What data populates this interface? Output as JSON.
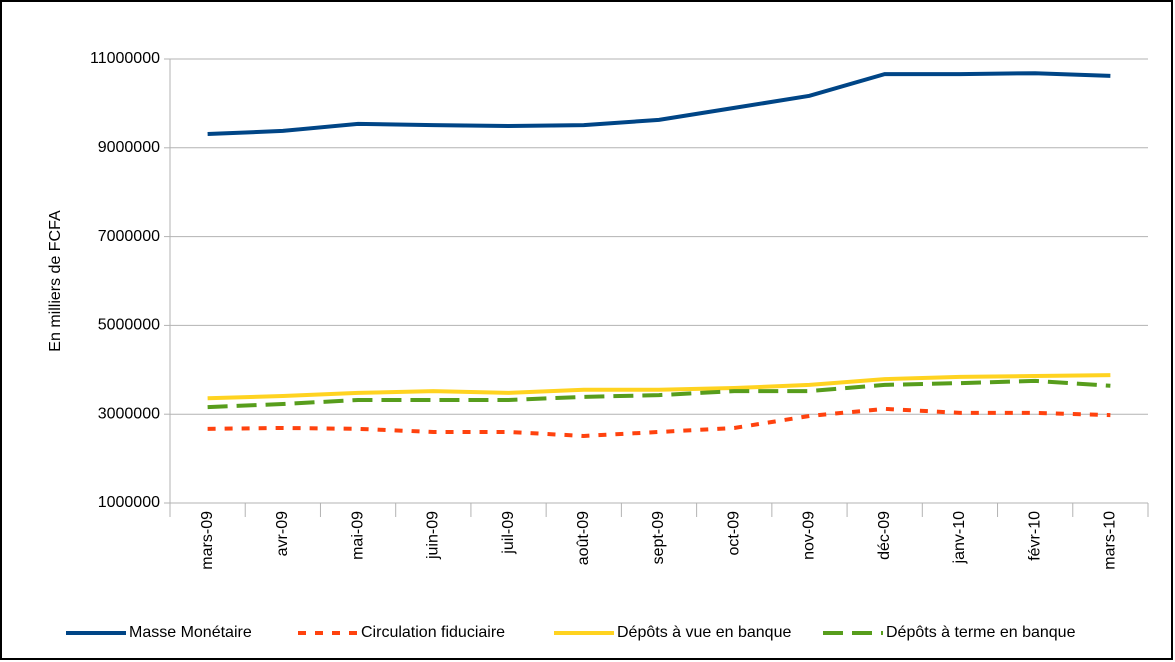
{
  "chart_data": {
    "type": "line",
    "ylabel": "En milliers de FCFA",
    "categories": [
      "mars-09",
      "avr-09",
      "mai-09",
      "juin-09",
      "juil-09",
      "août-09",
      "sept-09",
      "oct-09",
      "nov-09",
      "déc-09",
      "janv-10",
      "févr-10",
      "mars-10"
    ],
    "series": [
      {
        "name": "Masse Monétaire",
        "color": "#004586",
        "dash": "solid",
        "values": [
          9310000,
          9380000,
          9540000,
          9510000,
          9490000,
          9510000,
          9630000,
          9900000,
          10170000,
          10660000,
          10660000,
          10680000,
          10620000
        ]
      },
      {
        "name": "Circulation fiduciaire",
        "color": "#ff420e",
        "dash": "dotted",
        "values": [
          2670000,
          2690000,
          2670000,
          2600000,
          2600000,
          2510000,
          2600000,
          2690000,
          2960000,
          3120000,
          3030000,
          3030000,
          2980000
        ]
      },
      {
        "name": "Dépôts à vue en banque",
        "color": "#ffd320",
        "dash": "solid",
        "values": [
          3360000,
          3410000,
          3480000,
          3520000,
          3480000,
          3550000,
          3550000,
          3590000,
          3660000,
          3790000,
          3840000,
          3860000,
          3880000
        ]
      },
      {
        "name": "Dépôts à terme en banque",
        "color": "#579d1c",
        "dash": "dashed",
        "values": [
          3160000,
          3230000,
          3320000,
          3320000,
          3320000,
          3390000,
          3430000,
          3520000,
          3520000,
          3660000,
          3700000,
          3750000,
          3640000
        ]
      }
    ],
    "ylim": [
      1000000,
      11000000
    ],
    "yticks": [
      1000000,
      3000000,
      5000000,
      7000000,
      9000000,
      11000000
    ],
    "grid": true,
    "legend": "bottom"
  }
}
